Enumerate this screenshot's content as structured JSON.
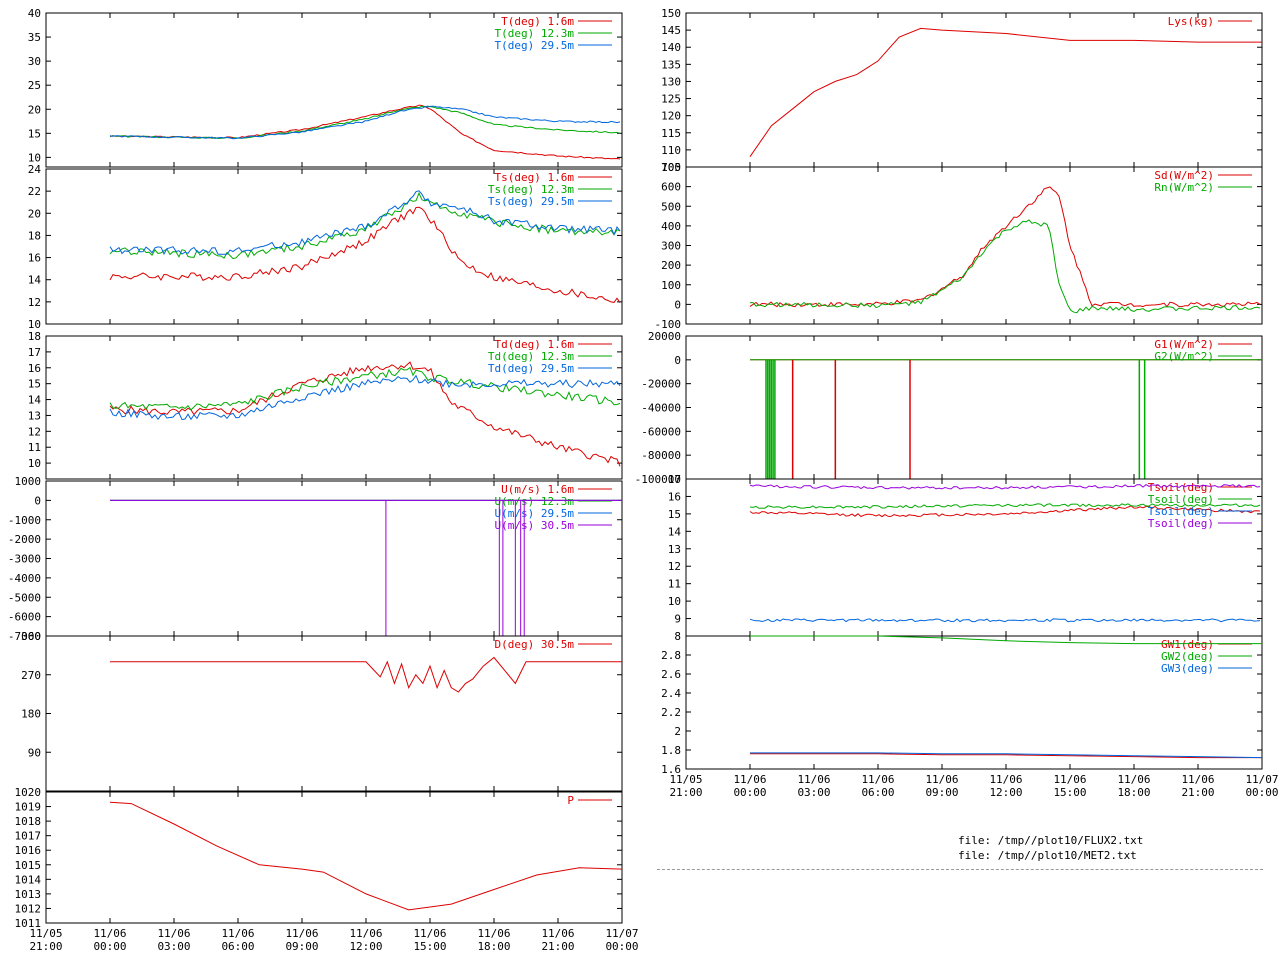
{
  "files": [
    "file: /tmp//plot10/FLUX2.txt",
    "file: /tmp//plot10/MET2.txt"
  ],
  "chart_data": [
    {
      "id": "temp",
      "type": "line",
      "ylim": [
        8,
        40
      ],
      "yticks": [
        "10",
        "15",
        "20",
        "25",
        "30",
        "35",
        "40"
      ],
      "x": [
        "11/06 00:00",
        "11/06 06:00",
        "11/06 09:00",
        "11/06 12:00",
        "11/06 13:30",
        "11/06 14:30",
        "11/06 15:00",
        "11/06 16:30",
        "11/06 18:00",
        "11/06 21:00",
        "11/07 00:00"
      ],
      "series": [
        {
          "name": "T(deg)  1.6m",
          "color": "#dd0000",
          "values": [
            14.4,
            14.1,
            15.8,
            18.5,
            20.0,
            20.8,
            20.2,
            14.8,
            11.5,
            10.3,
            9.6
          ]
        },
        {
          "name": "T(deg) 12.3m",
          "color": "#00aa00",
          "values": [
            14.4,
            14.0,
            15.5,
            18.0,
            19.8,
            20.5,
            20.6,
            19.2,
            16.8,
            15.7,
            15.1
          ]
        },
        {
          "name": "T(deg) 29.5m",
          "color": "#0066dd",
          "values": [
            14.4,
            14.0,
            15.3,
            17.5,
            19.5,
            20.2,
            20.6,
            20.0,
            18.4,
            17.5,
            17.3
          ]
        }
      ]
    },
    {
      "id": "tsonic",
      "type": "line",
      "ylim": [
        10,
        24
      ],
      "yticks": [
        "10",
        "12",
        "14",
        "16",
        "18",
        "20",
        "22",
        "24"
      ],
      "x": [
        "11/06 00:00",
        "11/06 06:00",
        "11/06 09:00",
        "11/06 12:00",
        "11/06 13:30",
        "11/06 14:30",
        "11/06 15:00",
        "11/06 16:30",
        "11/06 18:00",
        "11/06 21:00",
        "11/07 00:00"
      ],
      "series": [
        {
          "name": "Ts(deg)  1.6m",
          "color": "#dd0000",
          "values": [
            14.3,
            14.3,
            15.2,
            17.5,
            19.5,
            20.5,
            19.5,
            15.5,
            14.2,
            13.0,
            12.0
          ]
        },
        {
          "name": "Ts(deg) 12.3m",
          "color": "#00aa00",
          "values": [
            16.6,
            16.2,
            17.0,
            18.6,
            20.3,
            21.5,
            20.8,
            20.0,
            19.2,
            18.4,
            18.2
          ]
        },
        {
          "name": "Ts(deg) 29.5m",
          "color": "#0066dd",
          "values": [
            16.7,
            16.6,
            17.4,
            18.8,
            20.6,
            21.8,
            21.0,
            20.4,
            19.4,
            18.6,
            18.4
          ]
        }
      ]
    },
    {
      "id": "dew",
      "type": "line",
      "ylim": [
        9,
        18
      ],
      "yticks": [
        "10",
        "11",
        "12",
        "13",
        "14",
        "15",
        "16",
        "17",
        "18"
      ],
      "x": [
        "11/06 00:00",
        "11/06 03:00",
        "11/06 06:00",
        "11/06 09:00",
        "11/06 12:00",
        "11/06 14:00",
        "11/06 15:00",
        "11/06 16:00",
        "11/06 18:00",
        "11/06 21:00",
        "11/07 00:00"
      ],
      "series": [
        {
          "name": "Td(deg)  1.6m",
          "color": "#dd0000",
          "values": [
            13.4,
            13.2,
            13.3,
            15.0,
            16.0,
            16.2,
            15.8,
            13.8,
            12.3,
            11.0,
            10.0
          ]
        },
        {
          "name": "Td(deg) 12.3m",
          "color": "#00aa00",
          "values": [
            13.6,
            13.5,
            13.7,
            14.8,
            15.5,
            15.8,
            15.4,
            15.2,
            14.8,
            14.3,
            13.8
          ]
        },
        {
          "name": "Td(deg) 29.5m",
          "color": "#0066dd",
          "values": [
            13.2,
            12.9,
            13.0,
            14.2,
            15.0,
            15.3,
            15.2,
            15.0,
            15.0,
            15.0,
            15.0
          ]
        }
      ]
    },
    {
      "id": "wind",
      "type": "line",
      "ylim": [
        -7000,
        1000
      ],
      "yticks": [
        "-7000",
        "-6000",
        "-5000",
        "-4000",
        "-3000",
        "-2000",
        "-1000",
        "0",
        "1000"
      ],
      "x": [
        "11/06 00:00",
        "11/07 00:00"
      ],
      "spike_times": [
        "11/06 12:56",
        "11/06 18:15",
        "11/06 18:25",
        "11/06 19:00",
        "11/06 19:15",
        "11/06 19:25"
      ],
      "spike_value": -7000,
      "series": [
        {
          "name": "U(m/s)  1.6m",
          "color": "#dd0000",
          "values": [
            0,
            0
          ]
        },
        {
          "name": "U(m/s) 12.3m",
          "color": "#00aa00",
          "values": [
            0,
            0
          ]
        },
        {
          "name": "U(m/s) 29.5m",
          "color": "#0066dd",
          "values": [
            0,
            0
          ]
        },
        {
          "name": "U(m/s) 30.5m",
          "color": "#9900dd",
          "values": [
            0,
            0
          ]
        }
      ]
    },
    {
      "id": "dir",
      "type": "line",
      "ylim": [
        0,
        360
      ],
      "yticks": [
        "90",
        "180",
        "270",
        "360"
      ],
      "x": [
        "11/06 00:00",
        "11/06 12:00",
        "11/06 12:40",
        "11/06 13:00",
        "11/06 13:20",
        "11/06 13:40",
        "11/06 14:00",
        "11/06 14:20",
        "11/06 14:40",
        "11/06 15:00",
        "11/06 15:20",
        "11/06 15:40",
        "11/06 16:00",
        "11/06 16:20",
        "11/06 16:40",
        "11/06 17:00",
        "11/06 17:30",
        "11/06 18:00",
        "11/06 18:30",
        "11/06 19:00",
        "11/06 19:30",
        "11/07 00:00"
      ],
      "series": [
        {
          "name": "D(deg)  30.5m",
          "color": "#dd0000",
          "values": [
            300,
            300,
            265,
            300,
            250,
            295,
            240,
            270,
            250,
            290,
            240,
            280,
            240,
            230,
            250,
            260,
            290,
            310,
            280,
            250,
            300,
            300
          ]
        }
      ]
    },
    {
      "id": "pressure",
      "type": "line",
      "ylim": [
        1011,
        1020
      ],
      "yticks": [
        "1011",
        "1012",
        "1013",
        "1014",
        "1015",
        "1016",
        "1017",
        "1018",
        "1019",
        "1020"
      ],
      "x": [
        "11/06 00:00",
        "11/06 01:00",
        "11/06 03:00",
        "11/06 05:00",
        "11/06 07:00",
        "11/06 09:00",
        "11/06 10:00",
        "11/06 12:00",
        "11/06 14:00",
        "11/06 16:00",
        "11/06 18:00",
        "11/06 20:00",
        "11/06 22:00",
        "11/07 00:00"
      ],
      "series": [
        {
          "name": "P",
          "color": "#dd0000",
          "values": [
            1019.3,
            1019.2,
            1017.8,
            1016.3,
            1015.0,
            1014.7,
            1014.5,
            1013.0,
            1011.9,
            1012.3,
            1013.3,
            1014.3,
            1014.8,
            1014.7
          ]
        }
      ]
    },
    {
      "id": "lys",
      "type": "line",
      "ylim": [
        105,
        150
      ],
      "yticks": [
        "105",
        "110",
        "115",
        "120",
        "125",
        "130",
        "135",
        "140",
        "145",
        "150"
      ],
      "x": [
        "11/06 00:00",
        "11/06 01:00",
        "11/06 02:00",
        "11/06 03:00",
        "11/06 04:00",
        "11/06 05:00",
        "11/06 05:30",
        "11/06 06:00",
        "11/06 07:00",
        "11/06 08:00",
        "11/06 09:00",
        "11/06 12:00",
        "11/06 15:00",
        "11/06 18:00",
        "11/06 21:00",
        "11/07 00:00"
      ],
      "series": [
        {
          "name": "Lys(kg)",
          "color": "#dd0000",
          "values": [
            108,
            117,
            122,
            127,
            130,
            132,
            134,
            136,
            143,
            145.5,
            145,
            144,
            142,
            142,
            141.5,
            141.5
          ]
        }
      ]
    },
    {
      "id": "radiation",
      "type": "line",
      "ylim": [
        -100,
        700
      ],
      "yticks": [
        "-100",
        "0",
        "100",
        "200",
        "300",
        "400",
        "500",
        "600",
        "700"
      ],
      "x": [
        "11/06 00:00",
        "11/06 06:00",
        "11/06 08:00",
        "11/06 09:00",
        "11/06 10:00",
        "11/06 11:00",
        "11/06 12:00",
        "11/06 13:00",
        "11/06 14:00",
        "11/06 14:30",
        "11/06 15:00",
        "11/06 16:00",
        "11/06 18:00",
        "11/06 21:00",
        "11/07 00:00"
      ],
      "series": [
        {
          "name": "Sd(W/m^2)",
          "color": "#dd0000",
          "values": [
            0,
            0,
            20,
            80,
            150,
            300,
            400,
            500,
            600,
            550,
            300,
            5,
            0,
            0,
            0
          ]
        },
        {
          "name": "Rn(W/m^2)",
          "color": "#00aa00",
          "values": [
            0,
            -5,
            10,
            70,
            140,
            280,
            380,
            420,
            400,
            100,
            -40,
            -20,
            -25,
            -20,
            -15
          ]
        }
      ]
    },
    {
      "id": "gflux",
      "type": "line",
      "ylim": [
        -100000,
        20000
      ],
      "yticks": [
        "-100000",
        "-80000",
        "-60000",
        "-40000",
        "-20000",
        "0",
        "20000"
      ],
      "x": [
        "11/06 00:00",
        "11/07 00:00"
      ],
      "spikes": [
        {
          "series": 0,
          "times": [
            "11/06 02:00",
            "11/06 04:00",
            "11/06 07:30"
          ]
        },
        {
          "series": 1,
          "times": [
            "11/06 00:45",
            "11/06 00:50",
            "11/06 00:55",
            "11/06 01:00",
            "11/06 01:05",
            "11/06 01:10",
            "11/06 18:15",
            "11/06 18:30"
          ]
        }
      ],
      "spike_value": -100000,
      "series": [
        {
          "name": "G1(W/m^2)",
          "color": "#dd0000",
          "values": [
            0,
            0
          ]
        },
        {
          "name": "G2(W/m^2)",
          "color": "#00aa00",
          "values": [
            0,
            0
          ]
        }
      ]
    },
    {
      "id": "tsoil",
      "type": "line",
      "ylim": [
        8,
        17
      ],
      "yticks": [
        "8",
        "9",
        "10",
        "11",
        "12",
        "13",
        "14",
        "15",
        "16",
        "17"
      ],
      "x": [
        "11/06 00:00",
        "11/06 06:00",
        "11/06 12:00",
        "11/06 18:00",
        "11/07 00:00"
      ],
      "series": [
        {
          "name": "Tsoil(deg)",
          "color": "#dd0000",
          "values": [
            15.1,
            14.9,
            15.0,
            15.4,
            15.1
          ]
        },
        {
          "name": "Tsoil(deg)",
          "color": "#00aa00",
          "values": [
            15.4,
            15.4,
            15.5,
            15.5,
            15.5
          ]
        },
        {
          "name": "Tsoil(deg)",
          "color": "#0066dd",
          "values": [
            8.9,
            8.9,
            8.9,
            8.9,
            8.9
          ]
        },
        {
          "name": "Tsoil(deg)",
          "color": "#9900dd",
          "values": [
            16.6,
            16.5,
            16.5,
            16.6,
            16.6
          ]
        }
      ]
    },
    {
      "id": "gw",
      "type": "line",
      "ylim": [
        1.6,
        3.0
      ],
      "yticks": [
        "1.6",
        "1.8",
        "2",
        "2.2",
        "2.4",
        "2.6",
        "2.8"
      ],
      "x": [
        "11/06 00:00",
        "11/06 06:00",
        "11/06 09:00",
        "11/06 12:00",
        "11/06 15:00",
        "11/06 18:00",
        "11/06 21:00",
        "11/07 00:00"
      ],
      "series": [
        {
          "name": "GW1(deg)",
          "color": "#dd0000",
          "values": [
            1.76,
            1.76,
            1.75,
            1.75,
            1.74,
            1.73,
            1.72,
            1.72
          ]
        },
        {
          "name": "GW2(deg)",
          "color": "#00aa00",
          "values": [
            3.0,
            3.0,
            2.98,
            2.95,
            2.93,
            2.92,
            2.92,
            2.92
          ]
        },
        {
          "name": "GW3(deg)",
          "color": "#0066dd",
          "values": [
            1.77,
            1.77,
            1.76,
            1.76,
            1.75,
            1.74,
            1.73,
            1.72
          ]
        }
      ]
    }
  ],
  "xaxis": {
    "min": "11/05 21:00",
    "max": "11/07 00:00",
    "ticks": [
      [
        "11/05",
        "21:00"
      ],
      [
        "11/06",
        "00:00"
      ],
      [
        "11/06",
        "03:00"
      ],
      [
        "11/06",
        "06:00"
      ],
      [
        "11/06",
        "09:00"
      ],
      [
        "11/06",
        "12:00"
      ],
      [
        "11/06",
        "15:00"
      ],
      [
        "11/06",
        "18:00"
      ],
      [
        "11/06",
        "21:00"
      ],
      [
        "11/07",
        "00:00"
      ]
    ]
  }
}
